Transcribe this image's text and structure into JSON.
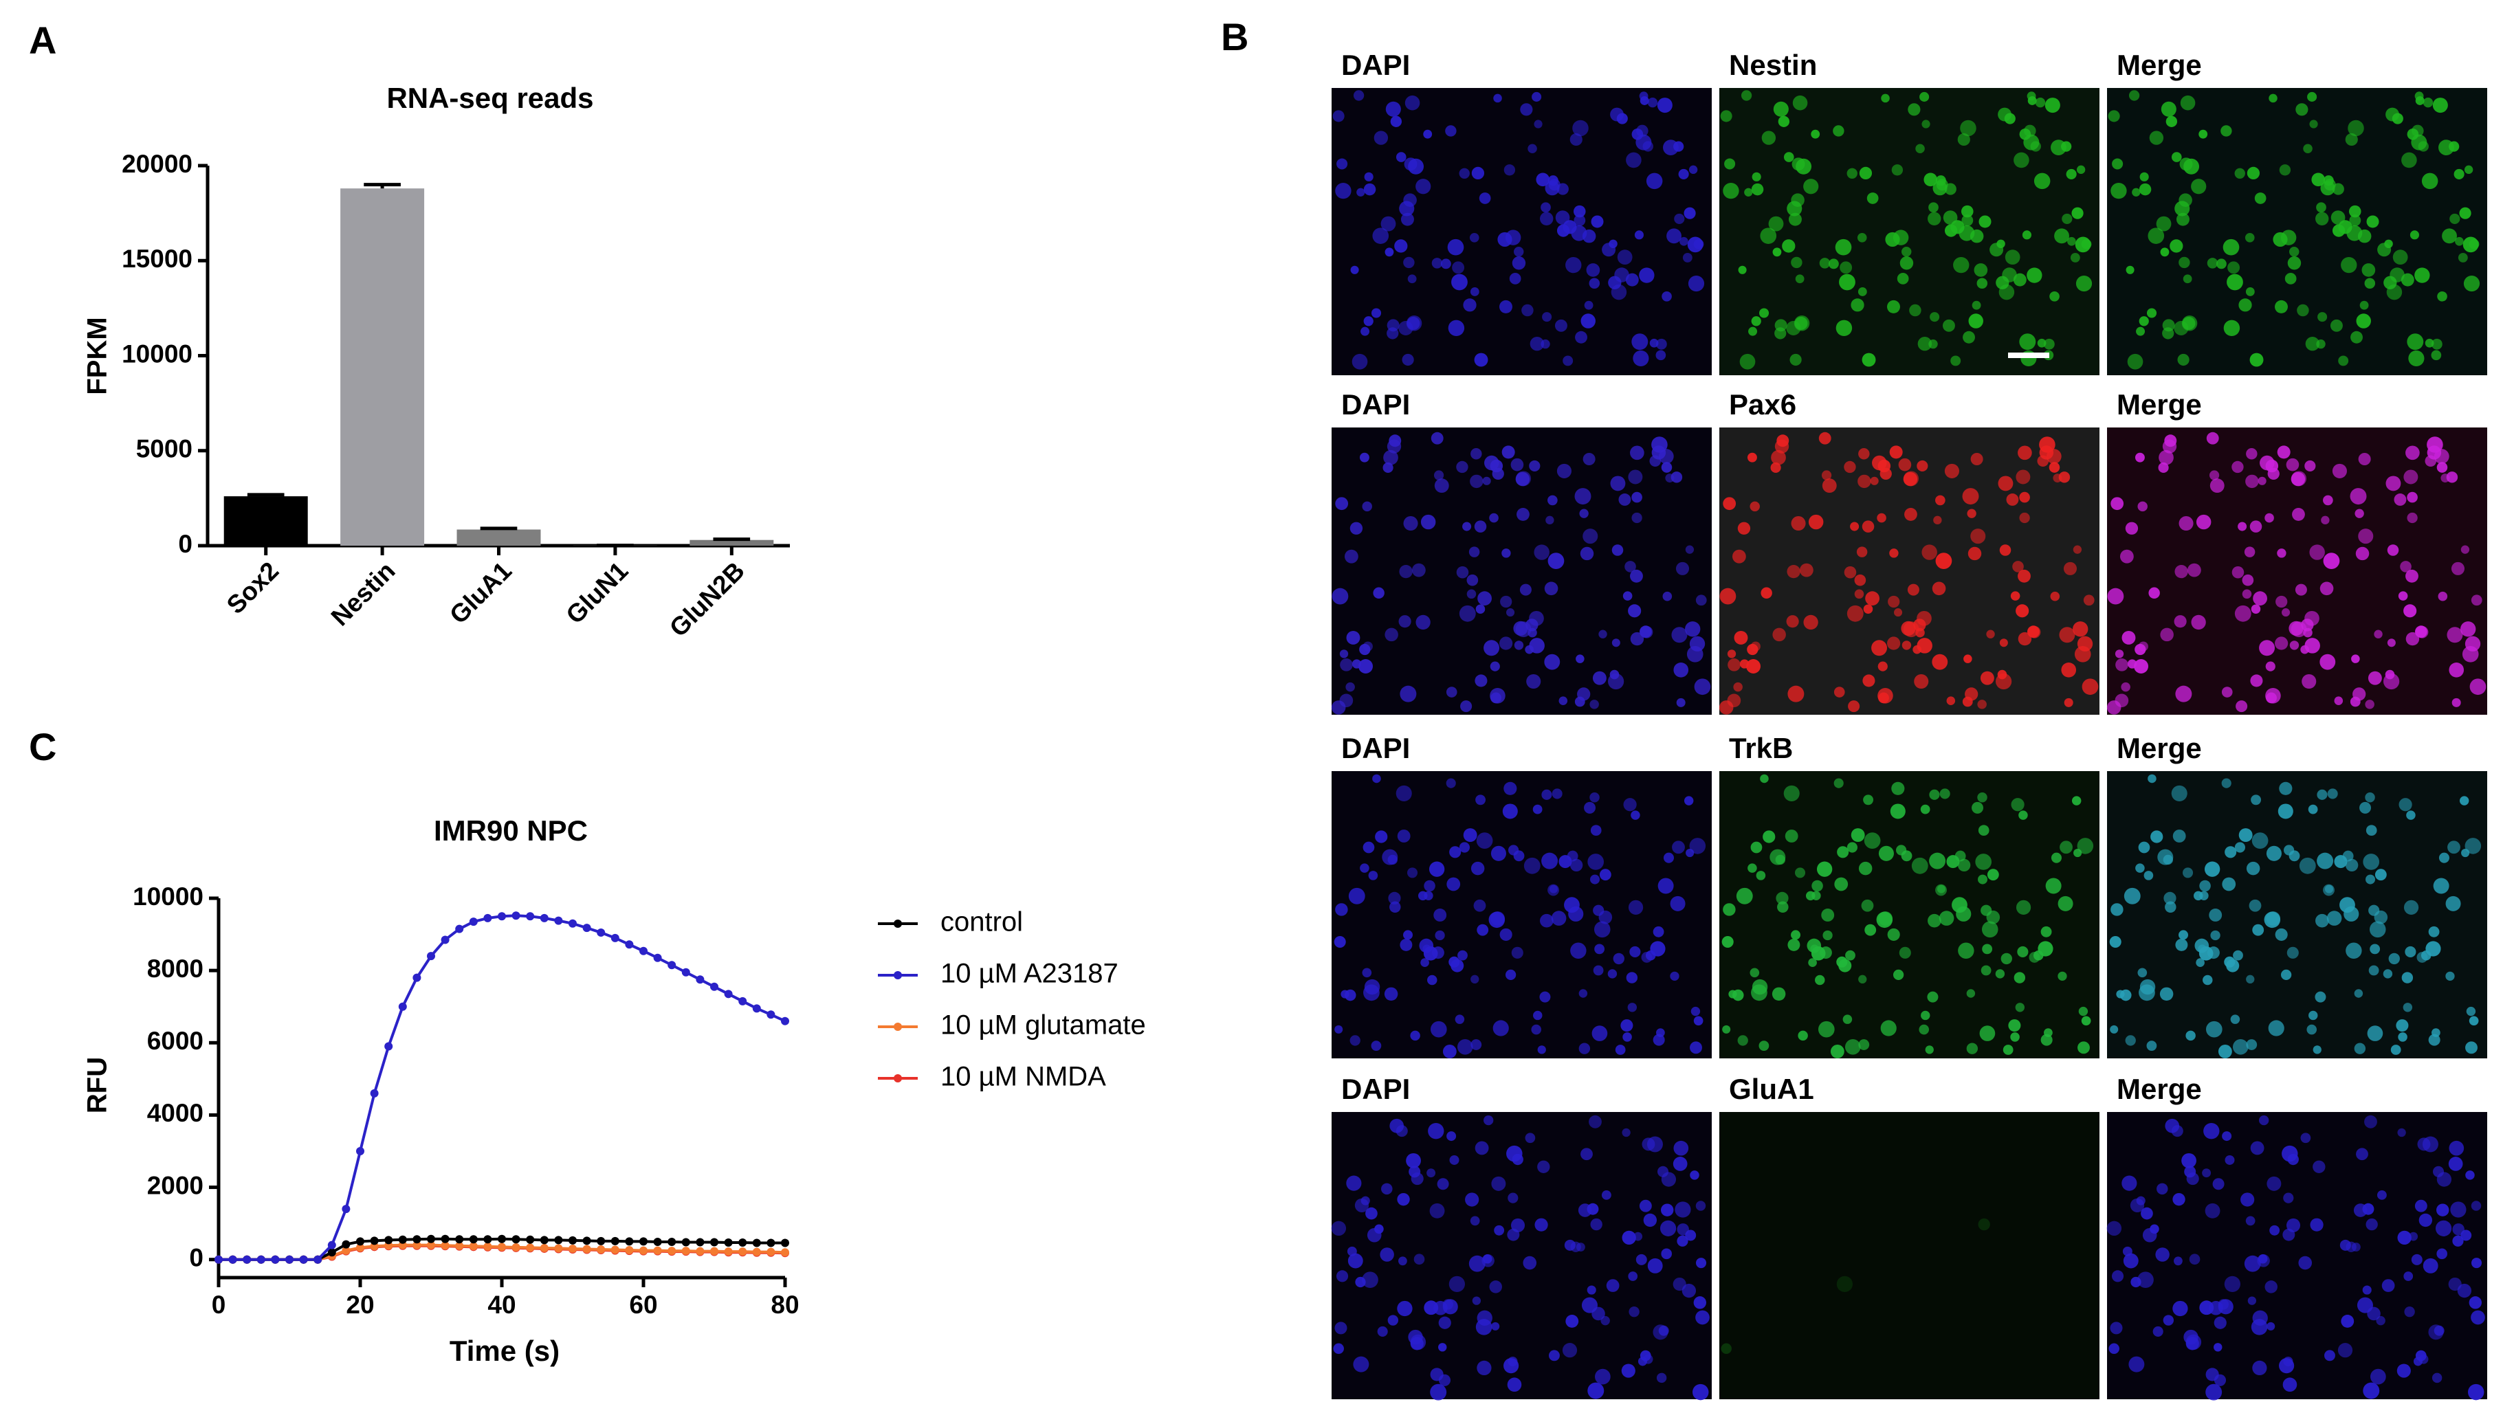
{
  "panel_labels": [
    "A",
    "B",
    "C"
  ],
  "chart_data": [
    {
      "type": "bar",
      "title": "RNA-seq reads",
      "y_label": "FPKM",
      "categories": [
        "Sox2",
        "Nestin",
        "GluA1",
        "GluN1",
        "GluN2B"
      ],
      "values": [
        2600,
        18800,
        850,
        10,
        300
      ],
      "errors": [
        80,
        200,
        60,
        5,
        40
      ],
      "colors": [
        "#000000",
        "#9e9ea3",
        "#7f7f7f",
        "#6a6a6a",
        "#777777"
      ],
      "ylim": [
        0,
        20000
      ],
      "yticks": [
        0,
        5000,
        10000,
        15000,
        20000
      ]
    },
    {
      "type": "line",
      "title": "IMR90 NPC",
      "x_label": "Time (s)",
      "y_label": "RFU",
      "legend": "right",
      "x": [
        0,
        2,
        4,
        6,
        8,
        10,
        12,
        14,
        16,
        18,
        20,
        22,
        24,
        26,
        28,
        30,
        32,
        34,
        36,
        38,
        40,
        42,
        44,
        46,
        48,
        50,
        52,
        54,
        56,
        58,
        60,
        62,
        64,
        66,
        68,
        70,
        72,
        74,
        76,
        78,
        80
      ],
      "series": [
        {
          "name": "control",
          "color": "#000000",
          "values": [
            0,
            0,
            0,
            0,
            0,
            0,
            0,
            0,
            200,
            420,
            500,
            520,
            540,
            550,
            560,
            570,
            570,
            560,
            560,
            560,
            570,
            560,
            550,
            540,
            540,
            530,
            520,
            510,
            510,
            500,
            500,
            490,
            490,
            480,
            480,
            480,
            470,
            470,
            460,
            460,
            460
          ]
        },
        {
          "name": "10 µM A23187",
          "color": "#2b22c8",
          "values": [
            0,
            0,
            0,
            0,
            0,
            0,
            0,
            0,
            400,
            1400,
            3000,
            4600,
            5900,
            7000,
            7800,
            8400,
            8850,
            9150,
            9350,
            9450,
            9500,
            9520,
            9500,
            9450,
            9380,
            9300,
            9180,
            9050,
            8900,
            8720,
            8540,
            8350,
            8150,
            7950,
            7750,
            7550,
            7350,
            7150,
            6950,
            6780,
            6600
          ]
        },
        {
          "name": "10 µM glutamate",
          "color": "#f47a30",
          "values": [
            0,
            0,
            0,
            0,
            0,
            0,
            0,
            0,
            100,
            250,
            330,
            370,
            390,
            400,
            400,
            400,
            390,
            380,
            370,
            360,
            350,
            340,
            330,
            320,
            310,
            300,
            290,
            280,
            270,
            260,
            250,
            250,
            240,
            240,
            230,
            230,
            220,
            220,
            210,
            210,
            200
          ]
        },
        {
          "name": "10 µM NMDA",
          "color": "#e8322a",
          "values": [
            0,
            0,
            0,
            0,
            0,
            0,
            0,
            0,
            80,
            230,
            310,
            350,
            370,
            380,
            380,
            380,
            370,
            360,
            350,
            340,
            330,
            320,
            310,
            300,
            290,
            280,
            270,
            260,
            250,
            240,
            230,
            230,
            220,
            220,
            210,
            210,
            200,
            200,
            190,
            190,
            180
          ]
        }
      ],
      "xlim": [
        0,
        80
      ],
      "xticks": [
        0,
        20,
        40,
        60,
        80
      ],
      "ylim": [
        -500,
        10000
      ],
      "yticks": [
        0,
        2000,
        4000,
        6000,
        8000,
        10000
      ]
    }
  ],
  "micrographs": [
    [
      "DAPI",
      "Nestin",
      "Merge"
    ],
    [
      "DAPI",
      "Pax6",
      "Merge"
    ],
    [
      "DAPI",
      "TrkB",
      "Merge"
    ],
    [
      "DAPI",
      "GluA1",
      "Merge"
    ]
  ]
}
